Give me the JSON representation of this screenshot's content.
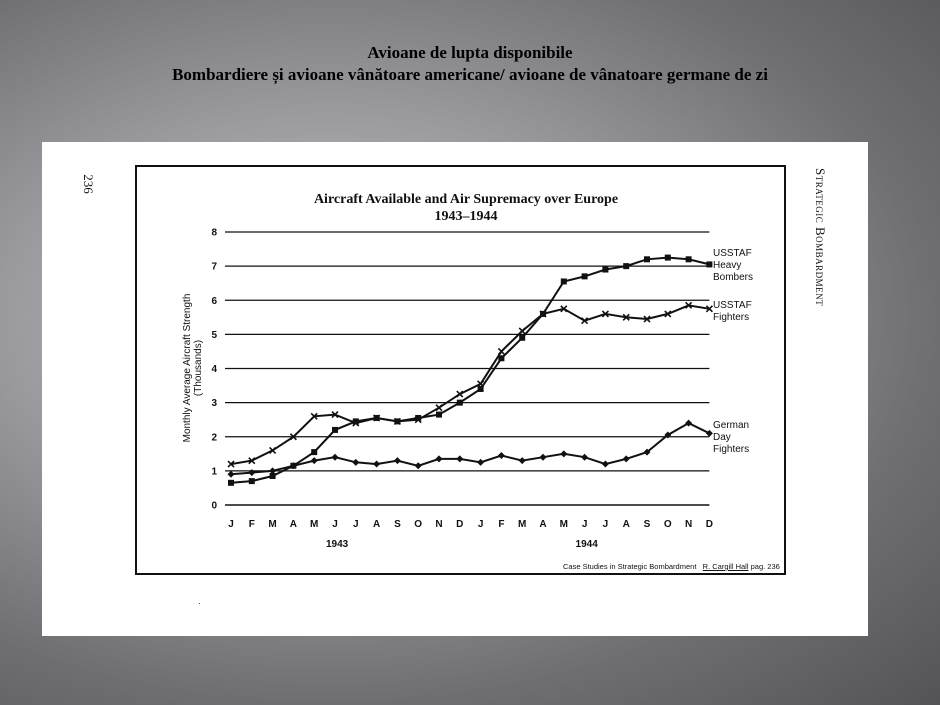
{
  "slide": {
    "title_line1": "Avioane de lupta disponibile",
    "title_line2": "Bombardiere și avioane vânătoare americane/ avioane de vânatoare germane de zi"
  },
  "page": {
    "number": "236",
    "running_head": "Strategic Bombardment"
  },
  "credit": {
    "source": "Case Studies in Strategic Bombardment",
    "author": "R. Cargill Hall",
    "page": "pag. 236"
  },
  "chart_data": {
    "type": "line",
    "title": "Aircraft Available and Air Supremacy over Europe",
    "subtitle": "1943–1944",
    "ylabel_line1": "Monthly Average Aircraft Strength",
    "ylabel_line2": "(Thousands)",
    "ylim": [
      0,
      8
    ],
    "yticks": [
      "0",
      "1",
      "2",
      "3",
      "4",
      "5",
      "6",
      "7",
      "8"
    ],
    "categories": [
      "J",
      "F",
      "M",
      "A",
      "M",
      "J",
      "J",
      "A",
      "S",
      "O",
      "N",
      "D",
      "J",
      "F",
      "M",
      "A",
      "M",
      "J",
      "J",
      "A",
      "S",
      "O",
      "N",
      "D"
    ],
    "year_labels": [
      "1943",
      "1944"
    ],
    "grid": "horizontal",
    "series": [
      {
        "name_lines": [
          "USSTAF",
          "Heavy",
          "Bombers"
        ],
        "marker": "square",
        "values": [
          0.65,
          0.7,
          0.85,
          1.15,
          1.55,
          2.2,
          2.45,
          2.55,
          2.45,
          2.55,
          2.65,
          3.0,
          3.4,
          4.3,
          4.9,
          5.6,
          6.55,
          6.7,
          6.9,
          7.0,
          7.2,
          7.25,
          7.2,
          7.05
        ]
      },
      {
        "name_lines": [
          "USSTAF",
          "Fighters"
        ],
        "marker": "x",
        "values": [
          1.2,
          1.3,
          1.6,
          2.0,
          2.6,
          2.65,
          2.4,
          2.55,
          2.45,
          2.5,
          2.85,
          3.25,
          3.55,
          4.5,
          5.1,
          5.6,
          5.75,
          5.4,
          5.6,
          5.5,
          5.45,
          5.6,
          5.85,
          5.75
        ]
      },
      {
        "name_lines": [
          "German",
          "Day",
          "Fighters"
        ],
        "marker": "diamond",
        "values": [
          0.9,
          0.95,
          1.0,
          1.15,
          1.3,
          1.4,
          1.25,
          1.2,
          1.3,
          1.15,
          1.35,
          1.35,
          1.25,
          1.45,
          1.3,
          1.4,
          1.5,
          1.4,
          1.2,
          1.35,
          1.55,
          2.05,
          2.4,
          2.1
        ]
      }
    ]
  }
}
